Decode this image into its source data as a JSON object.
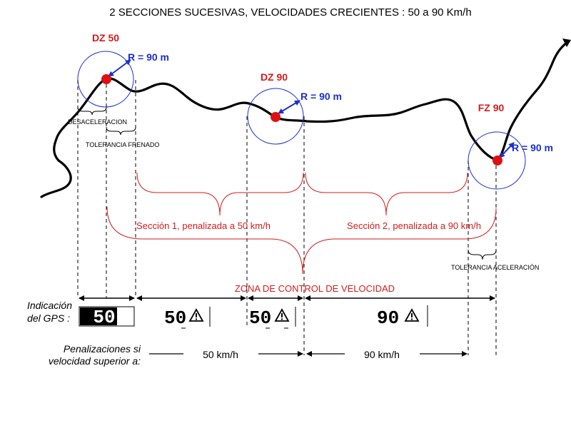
{
  "title": "2 SECCIONES SUCESIVAS, VELOCIDADES CRECIENTES : 50 a 90 Km/h",
  "zones": [
    {
      "name": "DZ 50",
      "radius_label": "R = 90 m"
    },
    {
      "name": "DZ 90",
      "radius_label": "R = 90 m"
    },
    {
      "name": "FZ 90",
      "radius_label": "R = 90 m"
    }
  ],
  "labels": {
    "deceleration": "DESACELERACION",
    "braking_tolerance": "TOLERANCIA FRENADO",
    "acceleration_tolerance": "TOLERANCIA ACELERACIÓN",
    "section1": "Sección 1, penalizada a 50 km/h",
    "section2": "Sección 2, penalizada a 90 km/h",
    "control_zone": "ZONA DE CONTROL DE  VELOCIDAD"
  },
  "gps": {
    "label_line1": "Indicación",
    "label_line2": "del GPS :",
    "displays": [
      "50",
      "50",
      "50",
      "90"
    ]
  },
  "penalties": {
    "label_line1": "Penalizaciones si",
    "label_line2": "velocidad superior a:",
    "speeds": [
      "50 km/h",
      "90 km/h"
    ]
  },
  "colors": {
    "zone_text": "#d41b1b",
    "radius_text": "#1a2fd0",
    "circle": "#1a2fd0",
    "brace": "#d41b1b",
    "marker": "#e01010",
    "route": "#000000"
  },
  "icons": [
    "warning-icon"
  ]
}
